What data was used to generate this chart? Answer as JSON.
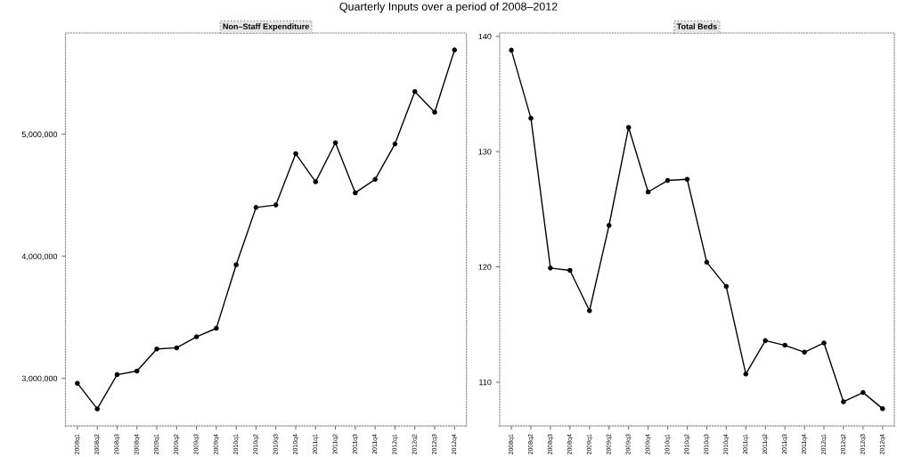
{
  "chart_data": [
    {
      "type": "line",
      "title": "Non–Staff Expenditure",
      "annotations": [
        "Quarterly Inputs over a period of 2008–2012"
      ],
      "categories": [
        "2008q1",
        "2008q2",
        "2008q3",
        "2008q4",
        "2009q1",
        "2009q2",
        "2009q3",
        "2009q4",
        "2010q1",
        "2010q2",
        "2010q3",
        "2010q4",
        "2011q1",
        "2011q2",
        "2011q3",
        "2011q4",
        "2012q1",
        "2012q2",
        "2012q3",
        "2012q4"
      ],
      "series": [
        {
          "color": "#000000",
          "values": [
            2960000,
            2750000,
            3030000,
            3060000,
            3240000,
            3250000,
            3340000,
            3410000,
            3930000,
            4400000,
            4420000,
            4840000,
            4610000,
            4930000,
            4520000,
            4630000,
            4920000,
            5350000,
            5180000,
            5690000
          ]
        }
      ],
      "ylim": [
        2610000,
        5830000
      ],
      "yticks": [
        {
          "value": 3000000,
          "label": "3,000,000"
        },
        {
          "value": 4000000,
          "label": "4,000,000"
        },
        {
          "value": 5000000,
          "label": "5,000,000"
        }
      ],
      "marker": "circle",
      "line_style": "solid",
      "grid": false,
      "legend": false
    },
    {
      "type": "line",
      "title": "Total Beds",
      "categories": [
        "2008q1",
        "2008q2",
        "2008q3",
        "2008q4",
        "2009q1",
        "2009q2",
        "2009q3",
        "2009q4",
        "2010q1",
        "2010q2",
        "2010q3",
        "2010q4",
        "2011q1",
        "2011q2",
        "2011q3",
        "2011q4",
        "2012q1",
        "2012q2",
        "2012q3",
        "2012q4"
      ],
      "series": [
        {
          "color": "#000000",
          "values": [
            138.8,
            132.9,
            119.9,
            119.7,
            116.2,
            123.6,
            132.1,
            126.5,
            127.5,
            127.6,
            120.4,
            118.3,
            110.7,
            113.6,
            113.2,
            112.6,
            113.4,
            108.3,
            109.1,
            107.7
          ]
        }
      ],
      "ylim": [
        106.2,
        140.3
      ],
      "yticks": [
        110,
        120,
        130,
        140
      ],
      "marker": "circle",
      "line_style": "solid",
      "grid": false,
      "legend": false
    }
  ]
}
